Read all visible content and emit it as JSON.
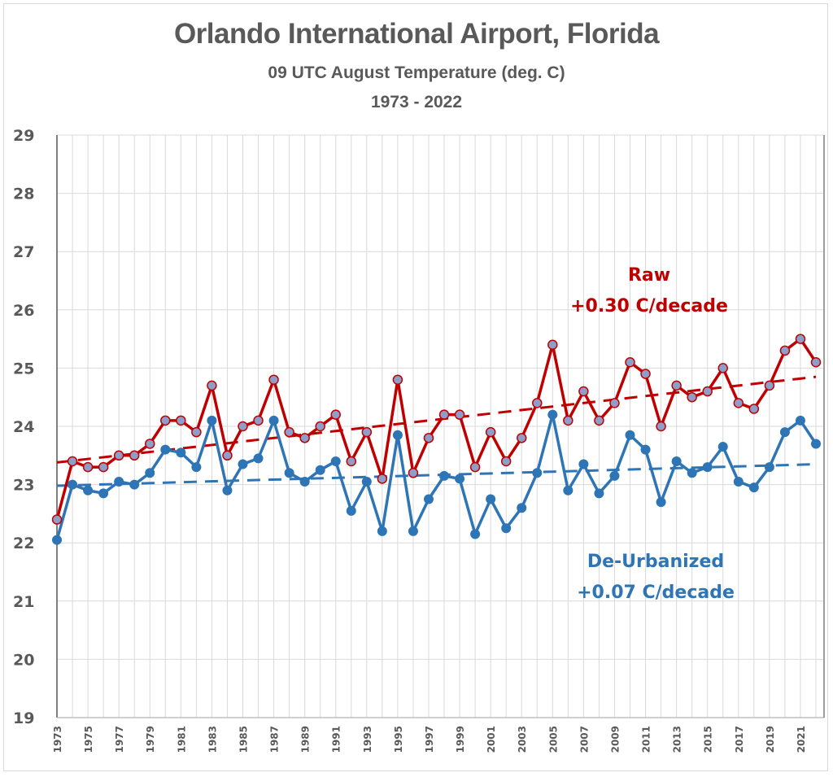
{
  "chart_data": {
    "type": "line",
    "title": "Orlando International Airport, Florida",
    "subtitle": "09 UTC August Temperature (deg. C)",
    "period_label": "1973 - 2022",
    "xlabel": "",
    "ylabel": "",
    "ylim": [
      19,
      29
    ],
    "xlim": [
      1973,
      2022
    ],
    "grid": true,
    "yticks": [
      "19",
      "20",
      "21",
      "22",
      "23",
      "24",
      "25",
      "26",
      "27",
      "28",
      "29"
    ],
    "xticks": [
      "1973",
      "1975",
      "1977",
      "1979",
      "1981",
      "1983",
      "1985",
      "1987",
      "1989",
      "1991",
      "1993",
      "1995",
      "1997",
      "1999",
      "2001",
      "2003",
      "2005",
      "2007",
      "2009",
      "2011",
      "2013",
      "2015",
      "2017",
      "2019",
      "2021"
    ],
    "x": [
      1973,
      1974,
      1975,
      1976,
      1977,
      1978,
      1979,
      1980,
      1981,
      1982,
      1983,
      1984,
      1985,
      1986,
      1987,
      1988,
      1989,
      1990,
      1991,
      1992,
      1993,
      1994,
      1995,
      1996,
      1997,
      1998,
      1999,
      2000,
      2001,
      2002,
      2003,
      2004,
      2005,
      2006,
      2007,
      2008,
      2009,
      2010,
      2011,
      2012,
      2013,
      2014,
      2015,
      2016,
      2017,
      2018,
      2019,
      2020,
      2021,
      2022
    ],
    "series": [
      {
        "name": "Raw",
        "color": "#c00000",
        "marker_color": "#8e9ec9",
        "values": [
          22.4,
          23.4,
          23.3,
          23.3,
          23.5,
          23.5,
          23.7,
          24.1,
          24.1,
          23.9,
          24.7,
          23.5,
          24.0,
          24.1,
          24.8,
          23.9,
          23.8,
          24.0,
          24.2,
          23.4,
          23.9,
          23.1,
          24.8,
          23.2,
          23.8,
          24.2,
          24.2,
          23.3,
          23.9,
          23.4,
          23.8,
          24.4,
          25.4,
          24.1,
          24.6,
          24.1,
          24.4,
          25.1,
          24.9,
          24.0,
          24.7,
          24.5,
          24.6,
          25.0,
          24.4,
          24.3,
          24.7,
          25.3,
          25.5,
          25.1
        ],
        "trend": {
          "start": 23.38,
          "end": 24.85,
          "rate_label": "+0.30 C/decade"
        }
      },
      {
        "name": "De-Urbanized",
        "color": "#2e75b6",
        "marker_color": "#2e75b6",
        "values": [
          22.05,
          23.0,
          22.9,
          22.85,
          23.05,
          23.0,
          23.2,
          23.6,
          23.55,
          23.3,
          24.1,
          22.9,
          23.35,
          23.45,
          24.1,
          23.2,
          23.05,
          23.25,
          23.4,
          22.55,
          23.05,
          22.2,
          23.85,
          22.2,
          22.75,
          23.15,
          23.1,
          22.15,
          22.75,
          22.25,
          22.6,
          23.2,
          24.2,
          22.9,
          23.35,
          22.85,
          23.15,
          23.85,
          23.6,
          22.7,
          23.4,
          23.2,
          23.3,
          23.65,
          23.05,
          22.95,
          23.3,
          23.9,
          24.1,
          23.7
        ],
        "trend": {
          "start": 22.98,
          "end": 23.35,
          "rate_label": "+0.07 C/decade"
        }
      }
    ],
    "annotations": [
      {
        "series": "Raw",
        "line1": "Raw",
        "line2": "+0.30 C/decade",
        "color": "#c00000"
      },
      {
        "series": "De-Urbanized",
        "line1": "De-Urbanized",
        "line2": "+0.07 C/decade",
        "color": "#2e75b6"
      }
    ]
  }
}
